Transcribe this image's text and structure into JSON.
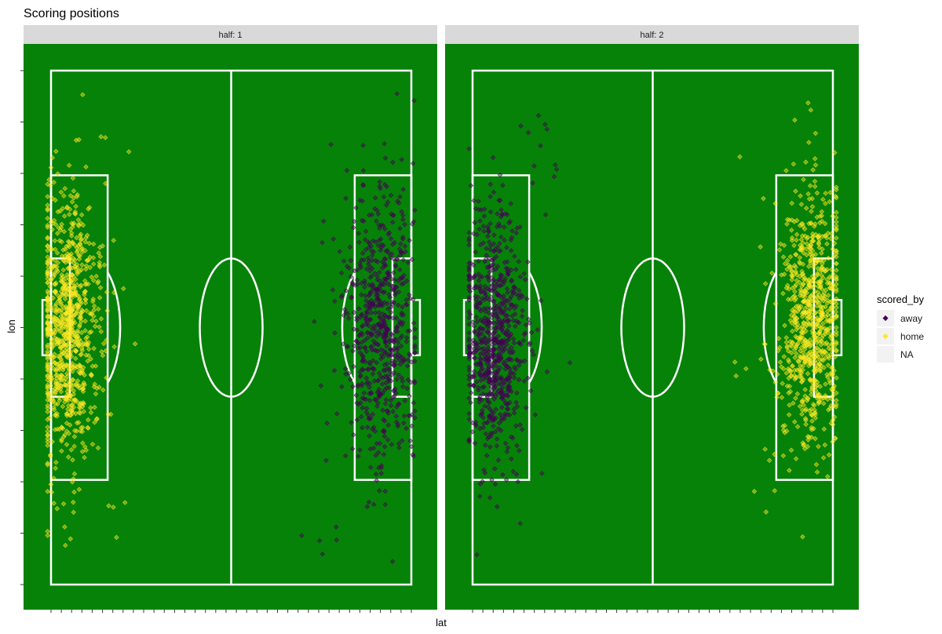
{
  "chart_data": {
    "type": "scatter",
    "title": "Scoring positions",
    "xlabel": "lat",
    "ylabel": "lon",
    "xlim": [
      0,
      105
    ],
    "ylim": [
      0,
      68
    ],
    "facet_var": "half",
    "facets": [
      {
        "label": "half: 1"
      },
      {
        "label": "half: 2"
      }
    ],
    "legend": {
      "title": "scored_by",
      "position": "right",
      "entries": [
        {
          "label": "away",
          "color": "#440154"
        },
        {
          "label": "home",
          "color": "#fde725"
        },
        {
          "label": "NA",
          "color": ""
        }
      ]
    },
    "clusters": [
      {
        "facet": 1,
        "group": "home",
        "x_center": 5,
        "y_center": 34,
        "x_spread": 4.5,
        "y_spread": 8.5,
        "n": 900
      },
      {
        "facet": 1,
        "group": "away",
        "x_center": 96,
        "y_center": 34,
        "x_spread": 5,
        "y_spread": 9,
        "n": 650
      },
      {
        "facet": 2,
        "group": "away",
        "x_center": 6,
        "y_center": 36,
        "x_spread": 4.5,
        "y_spread": 8.5,
        "n": 750
      },
      {
        "facet": 2,
        "group": "home",
        "x_center": 99,
        "y_center": 33,
        "x_spread": 4.5,
        "y_spread": 8.5,
        "n": 800
      }
    ],
    "pitch": {
      "length": 105,
      "width": 68,
      "penalty_box_depth": 16.5,
      "penalty_box_width": 40.3,
      "goal_area_depth": 5.5,
      "goal_area_width": 18.3,
      "centre_circle_radius": 9.15,
      "penalty_spot": 11,
      "goal_width": 7.32,
      "goal_depth": 2.5
    },
    "colors": {
      "panel_background": "#068208",
      "strip_background": "#d9d9d9",
      "pitch_lines": "#ffffff",
      "away": "#440154",
      "home": "#fde725"
    },
    "grid": false
  }
}
